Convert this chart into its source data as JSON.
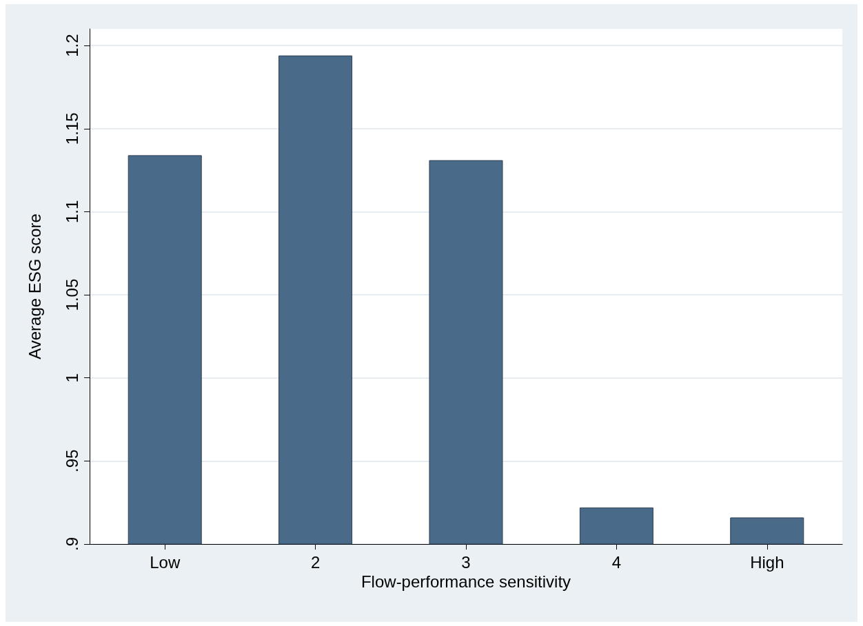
{
  "chart_data": {
    "type": "bar",
    "xlabel": "Flow-performance sensitivity",
    "ylabel": "Average ESG score",
    "categories": [
      "Low",
      "2",
      "3",
      "4",
      "High"
    ],
    "values": [
      1.134,
      1.194,
      1.131,
      0.922,
      0.916
    ],
    "color": "#4a6a8a",
    "ylim": [
      0.9,
      1.21
    ],
    "yticks": [
      {
        "value": 0.9,
        "label": ".9"
      },
      {
        "value": 0.95,
        "label": ".95"
      },
      1,
      1.05,
      1.1,
      1.15,
      1.2
    ],
    "grid": "y"
  }
}
